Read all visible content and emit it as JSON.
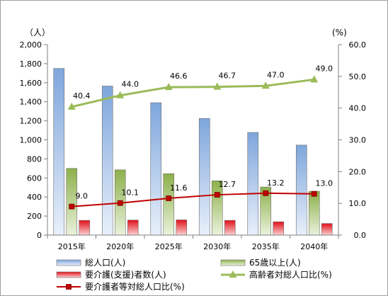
{
  "chart_data": {
    "type": "bar",
    "categories": [
      "2015年",
      "2020年",
      "2025年",
      "2030年",
      "2035年",
      "2040年"
    ],
    "left_unit": "（人）",
    "right_unit": "(%)",
    "y_left": {
      "min": 0,
      "max": 2000,
      "step": 200,
      "ticks": [
        "0",
        "200",
        "400",
        "600",
        "800",
        "1,000",
        "1,200",
        "1,400",
        "1,600",
        "1,800",
        "2,000"
      ]
    },
    "y_right": {
      "min": 0,
      "max": 60,
      "step": 10,
      "ticks": [
        "0.0",
        "10.0",
        "20.0",
        "30.0",
        "40.0",
        "50.0",
        "60.0"
      ]
    },
    "grid": false,
    "legend_position": "bottom",
    "series": [
      {
        "name": "総人口(人)",
        "type": "bar",
        "axis": "left",
        "color": "#8eb4e3",
        "values": [
          1750,
          1565,
          1390,
          1225,
          1078,
          945
        ]
      },
      {
        "name": "65歳以上(人)",
        "type": "bar",
        "axis": "left",
        "color": "#9bbb59",
        "values": [
          700,
          685,
          645,
          570,
          505,
          460
        ]
      },
      {
        "name": "要介護(支援)者数(人)",
        "type": "bar",
        "axis": "left",
        "color": "#e31a1c",
        "values": [
          155,
          158,
          160,
          155,
          140,
          122
        ]
      },
      {
        "name": "高齢者対総人口比(%)",
        "type": "line",
        "axis": "right",
        "color": "#9bbb59",
        "marker": "triangle",
        "values": [
          40.4,
          44.0,
          46.6,
          46.7,
          47.0,
          49.0
        ],
        "labels": [
          "40.4",
          "44.0",
          "46.6",
          "46.7",
          "47.0",
          "49.0"
        ]
      },
      {
        "name": "要介護者等対総人口比(%)",
        "type": "line",
        "axis": "right",
        "color": "#c00000",
        "marker": "square",
        "values": [
          9.0,
          10.1,
          11.6,
          12.7,
          13.2,
          13.0
        ],
        "labels": [
          "9.0",
          "10.1",
          "11.6",
          "12.7",
          "13.2",
          "13.0"
        ]
      }
    ]
  }
}
